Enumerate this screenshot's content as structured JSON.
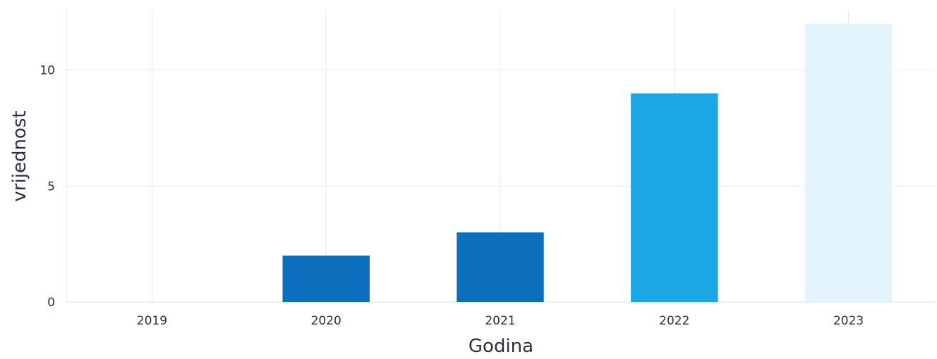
{
  "chart_data": {
    "type": "bar",
    "title": "",
    "xlabel": "Godina",
    "ylabel": "vrijednost",
    "categories": [
      "2019",
      "2020",
      "2021",
      "2022",
      "2023"
    ],
    "values": [
      0,
      2,
      3,
      9,
      12
    ],
    "bar_colors": [
      "#0b6fbd",
      "#0b6fbd",
      "#0b6fbd",
      "#1ba7e3",
      "#e3f4fc"
    ],
    "ylim": [
      0,
      12.6
    ],
    "yticks": [
      0,
      5,
      10
    ],
    "ytick_labels": [
      "0",
      "5",
      "10"
    ],
    "grid": true,
    "legend": false
  }
}
